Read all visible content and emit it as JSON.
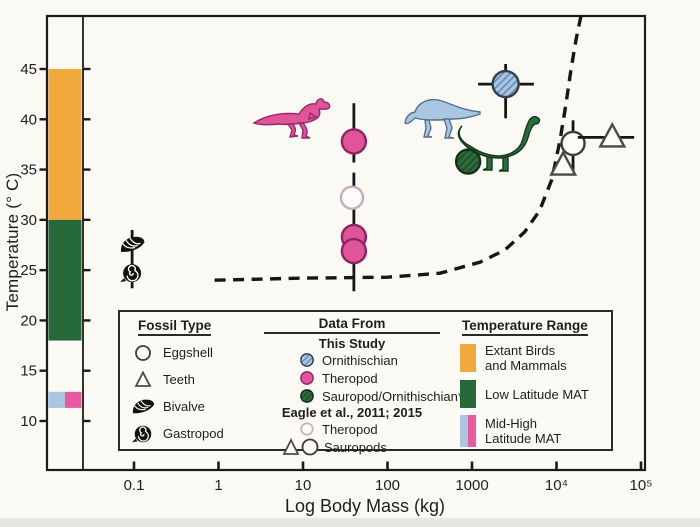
{
  "figure": {
    "background": "#FBF9F4",
    "frame_color": "#1b1b1b"
  },
  "chart_data": {
    "type": "scatter",
    "title": "",
    "xlabel": "Log Body Mass (kg)",
    "ylabel": "Temperature (° C)",
    "x_scale": "log",
    "xlim": [
      0.025,
      120000
    ],
    "ylim": [
      5,
      50.5
    ],
    "grid": false,
    "x_ticks": [
      {
        "value": 0.1,
        "label": "0.1"
      },
      {
        "value": 1,
        "label": "1"
      },
      {
        "value": 10,
        "label": "10"
      },
      {
        "value": 100,
        "label": "100"
      },
      {
        "value": 1000,
        "label": "1000"
      },
      {
        "value": 10000,
        "label": "10⁴"
      },
      {
        "value": 100000,
        "label": "10⁵"
      }
    ],
    "y_ticks": [
      10,
      15,
      20,
      25,
      30,
      35,
      40,
      45
    ],
    "temperature_ranges": [
      {
        "name": "Extant Birds and Mammals",
        "from": 30,
        "to": 45,
        "colors": [
          "#F2A93B"
        ]
      },
      {
        "name": "Low Latitude MAT",
        "from": 18,
        "to": 30,
        "colors": [
          "#266939"
        ]
      },
      {
        "name": "Mid-High Latitude MAT",
        "from": 11.3,
        "to": 12.9,
        "colors": [
          "#A9C6E2",
          "#E75B9E"
        ]
      }
    ],
    "dashed_curve": {
      "style": "dashed",
      "color": "#161616",
      "points": [
        [
          0.9,
          24.0
        ],
        [
          9,
          24.2
        ],
        [
          100,
          24.3
        ],
        [
          420,
          24.7
        ],
        [
          1250,
          25.8
        ],
        [
          2450,
          27.0
        ],
        [
          4200,
          28.8
        ],
        [
          6300,
          30.9
        ],
        [
          8800,
          34.0
        ],
        [
          11000,
          37.9
        ],
        [
          12900,
          41.4
        ],
        [
          14800,
          44.9
        ],
        [
          17000,
          47.9
        ],
        [
          19500,
          50.3
        ]
      ]
    },
    "series": [
      {
        "name": "Bivalve fossil",
        "slug": "bivalve-point",
        "symbol": "bivalve",
        "color": "#121212",
        "points": [
          {
            "x": 0.095,
            "y": 27.5
          }
        ],
        "yerr_segments": [
          {
            "x": 0.095,
            "y1": 23.2,
            "y2": 29.0
          }
        ]
      },
      {
        "name": "Gastropod fossil",
        "slug": "gastropod-point",
        "symbol": "gastropod",
        "color": "#121212",
        "points": [
          {
            "x": 0.095,
            "y": 24.7
          }
        ]
      },
      {
        "name": "Theropod (This Study)",
        "slug": "theropod-this-study",
        "symbol": "circle",
        "r": 12,
        "fill": "#E0549A",
        "stroke": "#8E2563",
        "points": [
          {
            "x": 40,
            "y": 37.8
          },
          {
            "x": 40,
            "y": 28.3
          },
          {
            "x": 40,
            "y": 26.9
          }
        ],
        "yerr_segments": [
          {
            "x": 40,
            "y1": 35.7,
            "y2": 41.6
          },
          {
            "x": 40,
            "y1": 22.9,
            "y2": 34.7
          }
        ]
      },
      {
        "name": "Theropod (Eagle et al., 2011; 2015)",
        "slug": "theropod-eagle",
        "symbol": "circle",
        "r": 11,
        "fill": "#FDFCF9",
        "stroke": "#C9A9BE",
        "points": [
          {
            "x": 38,
            "y": 32.2
          }
        ]
      },
      {
        "name": "Ornithischian (This Study)",
        "slug": "ornithischian-this-study",
        "symbol": "circle",
        "r": 13,
        "fill": "pattern-blue",
        "stroke": "#333F4D",
        "points": [
          {
            "x": 2500,
            "y": 43.5
          }
        ],
        "yerr_segments": [
          {
            "x": 2500,
            "y1": 40.1,
            "y2": 45.5
          }
        ],
        "xerr_segments": [
          {
            "y": 43.5,
            "x1": 1180,
            "x2": 5400
          }
        ]
      },
      {
        "name": "Sauropod/Ornithischian (This Study)",
        "slug": "sauropod-ornithischian-this-study",
        "symbol": "circle",
        "r": 12,
        "fill": "pattern-green",
        "stroke": "#152F1B",
        "points": [
          {
            "x": 900,
            "y": 35.8
          }
        ]
      },
      {
        "name": "Sauropod eggshell (Eagle et al., 2011; 2015)",
        "slug": "sauropod-eggshell-eagle",
        "symbol": "circle",
        "r": 11.5,
        "fill": "#FDFCF9",
        "stroke": "#3d3d3d",
        "points": [
          {
            "x": 15700,
            "y": 37.6
          }
        ],
        "yerr_segments": [
          {
            "x": 15700,
            "y1": 34.4,
            "y2": 39.9
          }
        ]
      },
      {
        "name": "Sauropod teeth (Eagle et al., 2011; 2015)",
        "slug": "sauropod-teeth-eagle",
        "symbol": "triangle",
        "r": 12,
        "fill": "#FDFCF9",
        "stroke": "#4a4a4a",
        "points": [
          {
            "x": 12000,
            "y": 35.4
          },
          {
            "x": 45700,
            "y": 38.2
          }
        ],
        "xerr_segments": [
          {
            "y": 38.2,
            "x1": 17900,
            "x2": 83000
          }
        ]
      }
    ],
    "silhouettes": [
      {
        "name": "theropod-silhouette",
        "fill": "#E0549A",
        "stroke": "#99286B"
      },
      {
        "name": "ornithischian-silhouette",
        "fill": "#A9C6E2",
        "stroke": "#55718B"
      },
      {
        "name": "sauropod-silhouette",
        "fill": "#2E6B3C",
        "stroke": "#14381E"
      }
    ],
    "colors": {
      "ornithischian_fill": "#A9C6E2",
      "ornithischian_hatch": "#5E87B0",
      "sauropod_fill": "#2E6B3C",
      "sauropod_hatch": "#1C4726"
    }
  },
  "legend": {
    "fossil_type": {
      "title": "Fossil Type",
      "items": [
        {
          "glyph": "eggshell",
          "label": "Eggshell"
        },
        {
          "glyph": "teeth",
          "label": "Teeth"
        },
        {
          "glyph": "bivalve",
          "label": "Bivalve"
        },
        {
          "glyph": "gastropod",
          "label": "Gastropod"
        }
      ]
    },
    "data_from": {
      "title": "Data From",
      "sections": [
        {
          "heading": "This Study",
          "items": [
            {
              "glyph": "circle-hatched-blue",
              "label": "Ornithischian"
            },
            {
              "glyph": "circle-pink",
              "label": "Theropod"
            },
            {
              "glyph": "circle-hatched-green",
              "label": "Sauropod/Ornithischian*"
            }
          ]
        },
        {
          "heading": "Eagle et al., 2011; 2015",
          "items": [
            {
              "glyph": "circle-open-pink",
              "label": "Theropod"
            },
            {
              "glyph": "triangle-circle",
              "label": "Sauropods"
            }
          ]
        }
      ]
    },
    "temperature_range": {
      "title": "Temperature Range",
      "items": [
        {
          "swatch": [
            "#F2A93B"
          ],
          "lines": [
            "Extant Birds",
            "and Mammals"
          ],
          "height": 28
        },
        {
          "swatch": [
            "#266939"
          ],
          "lines": [
            "Low Latitude MAT"
          ],
          "height": 28
        },
        {
          "swatch": [
            "#A9C6E2",
            "#E75B9E"
          ],
          "lines": [
            "Mid-High",
            "Latitude MAT"
          ],
          "height": 32
        }
      ]
    }
  }
}
